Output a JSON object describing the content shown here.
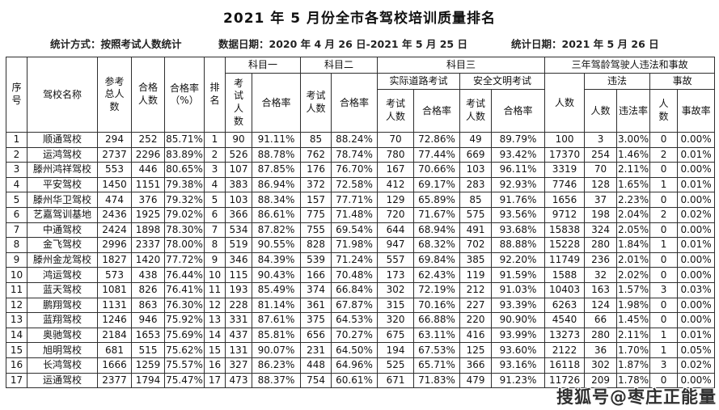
{
  "title": "2021 年 5 月份全市各驾校培训质量排名",
  "meta": {
    "stat_method": "统计方式：按照考试人数统计",
    "data_date": "数据日期：2020 年 4 月 26 日-2021 年 5 月 25 日",
    "stat_date": "统计日期：2021 年 5 月 26 日"
  },
  "table": {
    "headers": {
      "serial": "序号",
      "school": "驾校名称",
      "total_participants": "参考总人数",
      "passed": "合格人数",
      "pass_rate_pct": "合格率（%）",
      "rank": "排名",
      "subject1": "科目一",
      "subject2": "科目二",
      "subject3": "科目三",
      "three_year": "三年驾龄驾驶人违法和事故",
      "exam_count": "考试人数",
      "pass_rate": "合格率",
      "road_test": "实际道路考试",
      "safety_test": "安全文明考试",
      "count": "人数",
      "violation": "违法",
      "violation_rate": "违法率",
      "accident": "事故",
      "accident_rate": "事故率"
    },
    "col_keys": [
      "serial",
      "school-name",
      "total-participants",
      "passed-count",
      "pass-rate",
      "rank",
      "s1-exam-count",
      "s1-pass-rate",
      "s2-exam-count",
      "s2-pass-rate",
      "s3-road-exam-count",
      "s3-road-pass-rate",
      "s3-safety-exam-count",
      "s3-safety-pass-rate",
      "driver-count",
      "violation-count",
      "violation-rate",
      "accident-count",
      "accident-rate"
    ],
    "rows": [
      [
        "1",
        "顺通驾校",
        "294",
        "252",
        "85.71%",
        "1",
        "90",
        "91.11%",
        "85",
        "88.24%",
        "70",
        "72.86%",
        "49",
        "89.79%",
        "100",
        "3",
        "3.00%",
        "0",
        "0.00%"
      ],
      [
        "2",
        "运鸿驾校",
        "2737",
        "2296",
        "83.89%",
        "2",
        "526",
        "88.78%",
        "762",
        "78.74%",
        "780",
        "77.44%",
        "669",
        "93.42%",
        "17370",
        "254",
        "1.46%",
        "2",
        "0.01%"
      ],
      [
        "3",
        "滕州鸿祥驾校",
        "553",
        "446",
        "80.65%",
        "3",
        "107",
        "87.85%",
        "176",
        "76.70%",
        "167",
        "70.66%",
        "103",
        "96.11%",
        "3319",
        "70",
        "2.11%",
        "0",
        "0.00%"
      ],
      [
        "4",
        "平安驾校",
        "1450",
        "1151",
        "79.38%",
        "4",
        "383",
        "86.94%",
        "372",
        "72.58%",
        "412",
        "69.17%",
        "283",
        "92.93%",
        "7746",
        "128",
        "1.65%",
        "1",
        "0.01%"
      ],
      [
        "5",
        "滕州华卫驾校",
        "474",
        "376",
        "79.32%",
        "5",
        "103",
        "88.34%",
        "157",
        "77.71%",
        "129",
        "65.89%",
        "85",
        "91.76%",
        "1656",
        "37",
        "2.23%",
        "0",
        "0.00%"
      ],
      [
        "6",
        "艺嘉驾训基地",
        "2436",
        "1925",
        "79.02%",
        "6",
        "366",
        "86.61%",
        "775",
        "71.48%",
        "720",
        "71.67%",
        "575",
        "93.56%",
        "9712",
        "198",
        "2.04%",
        "2",
        "0.02%"
      ],
      [
        "7",
        "中通驾校",
        "2424",
        "1898",
        "78.30%",
        "7",
        "534",
        "87.82%",
        "755",
        "69.54%",
        "644",
        "68.94%",
        "491",
        "93.68%",
        "15838",
        "324",
        "2.05%",
        "0",
        "0.00%"
      ],
      [
        "8",
        "金飞驾校",
        "2996",
        "2337",
        "78.00%",
        "8",
        "519",
        "90.55%",
        "828",
        "71.98%",
        "947",
        "68.32%",
        "702",
        "88.88%",
        "15228",
        "280",
        "1.84%",
        "1",
        "0.01%"
      ],
      [
        "9",
        "滕州金龙驾校",
        "1827",
        "1420",
        "77.72%",
        "9",
        "346",
        "84.39%",
        "539",
        "71.24%",
        "557",
        "69.84%",
        "385",
        "92.20%",
        "11749",
        "236",
        "2.01%",
        "0",
        "0.00%"
      ],
      [
        "10",
        "鸿运驾校",
        "573",
        "438",
        "76.44%",
        "10",
        "115",
        "90.43%",
        "166",
        "70.48%",
        "173",
        "62.43%",
        "119",
        "91.59%",
        "1588",
        "32",
        "2.02%",
        "0",
        "0.00%"
      ],
      [
        "11",
        "蓝天驾校",
        "1081",
        "826",
        "76.41%",
        "11",
        "193",
        "85.49%",
        "374",
        "66.84%",
        "302",
        "72.19%",
        "212",
        "91.03%",
        "10403",
        "163",
        "1.57%",
        "3",
        "0.03%"
      ],
      [
        "12",
        "鹏翔驾校",
        "1131",
        "863",
        "76.30%",
        "12",
        "228",
        "81.14%",
        "361",
        "67.87%",
        "315",
        "70.16%",
        "227",
        "93.39%",
        "6263",
        "124",
        "1.98%",
        "0",
        "0.00%"
      ],
      [
        "13",
        "蓝翔驾校",
        "1246",
        "946",
        "75.92%",
        "13",
        "331",
        "87.61%",
        "375",
        "64.53%",
        "320",
        "66.88%",
        "220",
        "90.90%",
        "4540",
        "66",
        "1.45%",
        "0",
        "0.00%"
      ],
      [
        "14",
        "奥驰驾校",
        "2184",
        "1653",
        "75.69%",
        "14",
        "437",
        "85.81%",
        "656",
        "70.27%",
        "675",
        "63.11%",
        "416",
        "93.99%",
        "13273",
        "280",
        "2.11%",
        "1",
        "0.01%"
      ],
      [
        "15",
        "旭明驾校",
        "681",
        "515",
        "75.62%",
        "15",
        "131",
        "90.07%",
        "231",
        "64.50%",
        "194",
        "67.53%",
        "125",
        "93.60%",
        "2122",
        "36",
        "1.70%",
        "1",
        "0.05%"
      ],
      [
        "16",
        "长鸿驾校",
        "1666",
        "1259",
        "75.57%",
        "16",
        "327",
        "86.23%",
        "448",
        "64.96%",
        "525",
        "65.71%",
        "366",
        "93.16%",
        "16118",
        "302",
        "1.87%",
        "3",
        "0.02%"
      ],
      [
        "17",
        "运通驾校",
        "2377",
        "1794",
        "75.47%",
        "17",
        "473",
        "88.37%",
        "754",
        "60.61%",
        "671",
        "71.83%",
        "479",
        "91.23%",
        "11726",
        "209",
        "1.78%",
        "0",
        "0.00%"
      ]
    ]
  },
  "watermark": "搜狐号@枣庄正能量"
}
